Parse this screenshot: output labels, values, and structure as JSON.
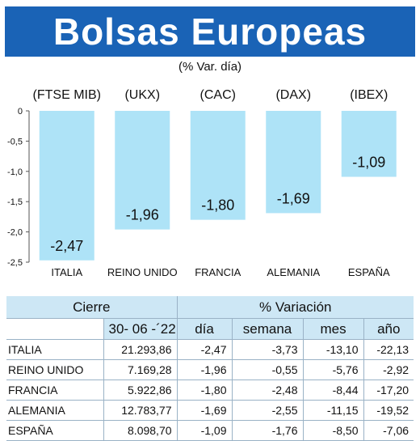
{
  "title": "Bolsas Europeas",
  "subtitle": "(% Var. día)",
  "colors": {
    "banner": "#1a63b6",
    "bar": "#aee3f7",
    "table_header": "#cde7f5"
  },
  "chart_data": {
    "type": "bar",
    "index_labels": [
      "(FTSE MIB)",
      "(UKX)",
      "(CAC)",
      "(DAX)",
      "(IBEX)"
    ],
    "categories": [
      "ITALIA",
      "REINO UNIDO",
      "FRANCIA",
      "ALEMANIA",
      "ESPAÑA"
    ],
    "values": [
      -2.47,
      -1.96,
      -1.8,
      -1.69,
      -1.09
    ],
    "value_labels": [
      "-2,47",
      "-1,96",
      "-1,80",
      "-1,69",
      "-1,09"
    ],
    "yticks": [
      0,
      -0.5,
      -1.0,
      -1.5,
      -2.0,
      -2.5
    ],
    "ytick_labels": [
      "0",
      "-0,5",
      "-1,0",
      "-1,5",
      "-2,0",
      "-2,5"
    ],
    "ylim": [
      -2.5,
      0
    ],
    "grid": false
  },
  "table": {
    "header_cierre": "Cierre",
    "header_variacion": "% Variación",
    "date": "30- 06 -´22",
    "col_dia": "día",
    "col_semana": "semana",
    "col_mes": "mes",
    "col_ano": "año",
    "rows": [
      {
        "name": "ITALIA",
        "cierre": "21.293,86",
        "dia": "-2,47",
        "semana": "-3,73",
        "mes": "-13,10",
        "ano": "-22,13"
      },
      {
        "name": "REINO UNIDO",
        "cierre": "7.169,28",
        "dia": "-1,96",
        "semana": "-0,55",
        "mes": "-5,76",
        "ano": "-2,92"
      },
      {
        "name": "FRANCIA",
        "cierre": "5.922,86",
        "dia": "-1,80",
        "semana": "-2,48",
        "mes": "-8,44",
        "ano": "-17,20"
      },
      {
        "name": "ALEMANIA",
        "cierre": "12.783,77",
        "dia": "-1,69",
        "semana": "-2,55",
        "mes": "-11,15",
        "ano": "-19,52"
      },
      {
        "name": "ESPAÑA",
        "cierre": "8.098,70",
        "dia": "-1,09",
        "semana": "-1,76",
        "mes": "-8,50",
        "ano": "-7,06"
      }
    ]
  }
}
